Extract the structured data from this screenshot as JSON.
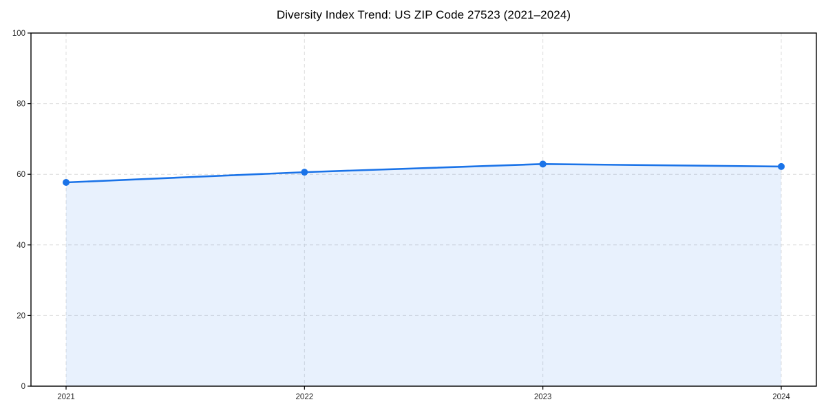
{
  "chart_data": {
    "type": "area",
    "title": "Diversity Index Trend: US ZIP Code 27523 (2021–2024)",
    "x": [
      "2021",
      "2022",
      "2023",
      "2024"
    ],
    "series": [
      {
        "name": "Diversity Index",
        "values": [
          57.7,
          60.6,
          62.9,
          62.2
        ]
      }
    ],
    "xlabel": "",
    "ylabel": "",
    "ylim": [
      0,
      100
    ],
    "yticks": [
      0,
      20,
      40,
      60,
      80,
      100
    ],
    "grid": true,
    "grid_style": "dashed",
    "legend": "none",
    "colors": {
      "line": "#1a73e8",
      "marker": "#1a73e8",
      "fill": "#1a73e8",
      "fill_opacity": 0.1,
      "gridline": "#dcdcdc",
      "spine": "#000000",
      "tick_label": "#262626",
      "background": "#ffffff"
    }
  }
}
